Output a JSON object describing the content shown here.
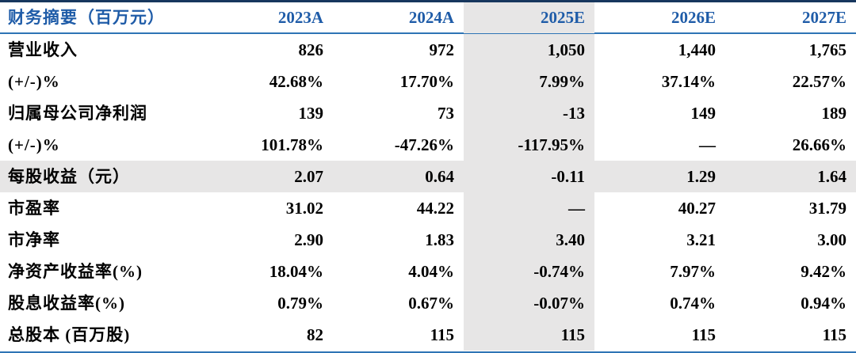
{
  "table": {
    "header": {
      "title": "财务摘要（百万元）",
      "columns": [
        "2023A",
        "2024A",
        "2025E",
        "2026E",
        "2027E"
      ]
    },
    "rows": [
      {
        "label": "营业收入",
        "values": [
          "826",
          "972",
          "1,050",
          "1,440",
          "1,765"
        ],
        "highlight": false
      },
      {
        "label": "(+/-)%",
        "values": [
          "42.68%",
          "17.70%",
          "7.99%",
          "37.14%",
          "22.57%"
        ],
        "highlight": false
      },
      {
        "label": "归属母公司净利润",
        "values": [
          "139",
          "73",
          "-13",
          "149",
          "189"
        ],
        "highlight": false
      },
      {
        "label": "(+/-)%",
        "values": [
          "101.78%",
          "-47.26%",
          "-117.95%",
          "—",
          "26.66%"
        ],
        "highlight": false
      },
      {
        "label": "每股收益（元）",
        "values": [
          "2.07",
          "0.64",
          "-0.11",
          "1.29",
          "1.64"
        ],
        "highlight": true
      },
      {
        "label": "市盈率",
        "values": [
          "31.02",
          "44.22",
          "—",
          "40.27",
          "31.79"
        ],
        "highlight": false
      },
      {
        "label": "市净率",
        "values": [
          "2.90",
          "1.83",
          "3.40",
          "3.21",
          "3.00"
        ],
        "highlight": false
      },
      {
        "label": "净资产收益率(%)",
        "values": [
          "18.04%",
          "4.04%",
          "-0.74%",
          "7.97%",
          "9.42%"
        ],
        "highlight": false
      },
      {
        "label": "股息收益率(%)",
        "values": [
          "0.79%",
          "0.67%",
          "-0.07%",
          "0.74%",
          "0.94%"
        ],
        "highlight": false
      },
      {
        "label": "总股本 (百万股)",
        "values": [
          "82",
          "115",
          "115",
          "115",
          "115"
        ],
        "highlight": false
      }
    ],
    "highlight_column_index": 2,
    "colors": {
      "header_text": "#1F5CA8",
      "top_border": "#17375E",
      "header_underline": "#2E74B5",
      "bottom_border": "#2E74B5",
      "highlight_bg": "#E7E6E6",
      "value_text": "#000000"
    }
  }
}
